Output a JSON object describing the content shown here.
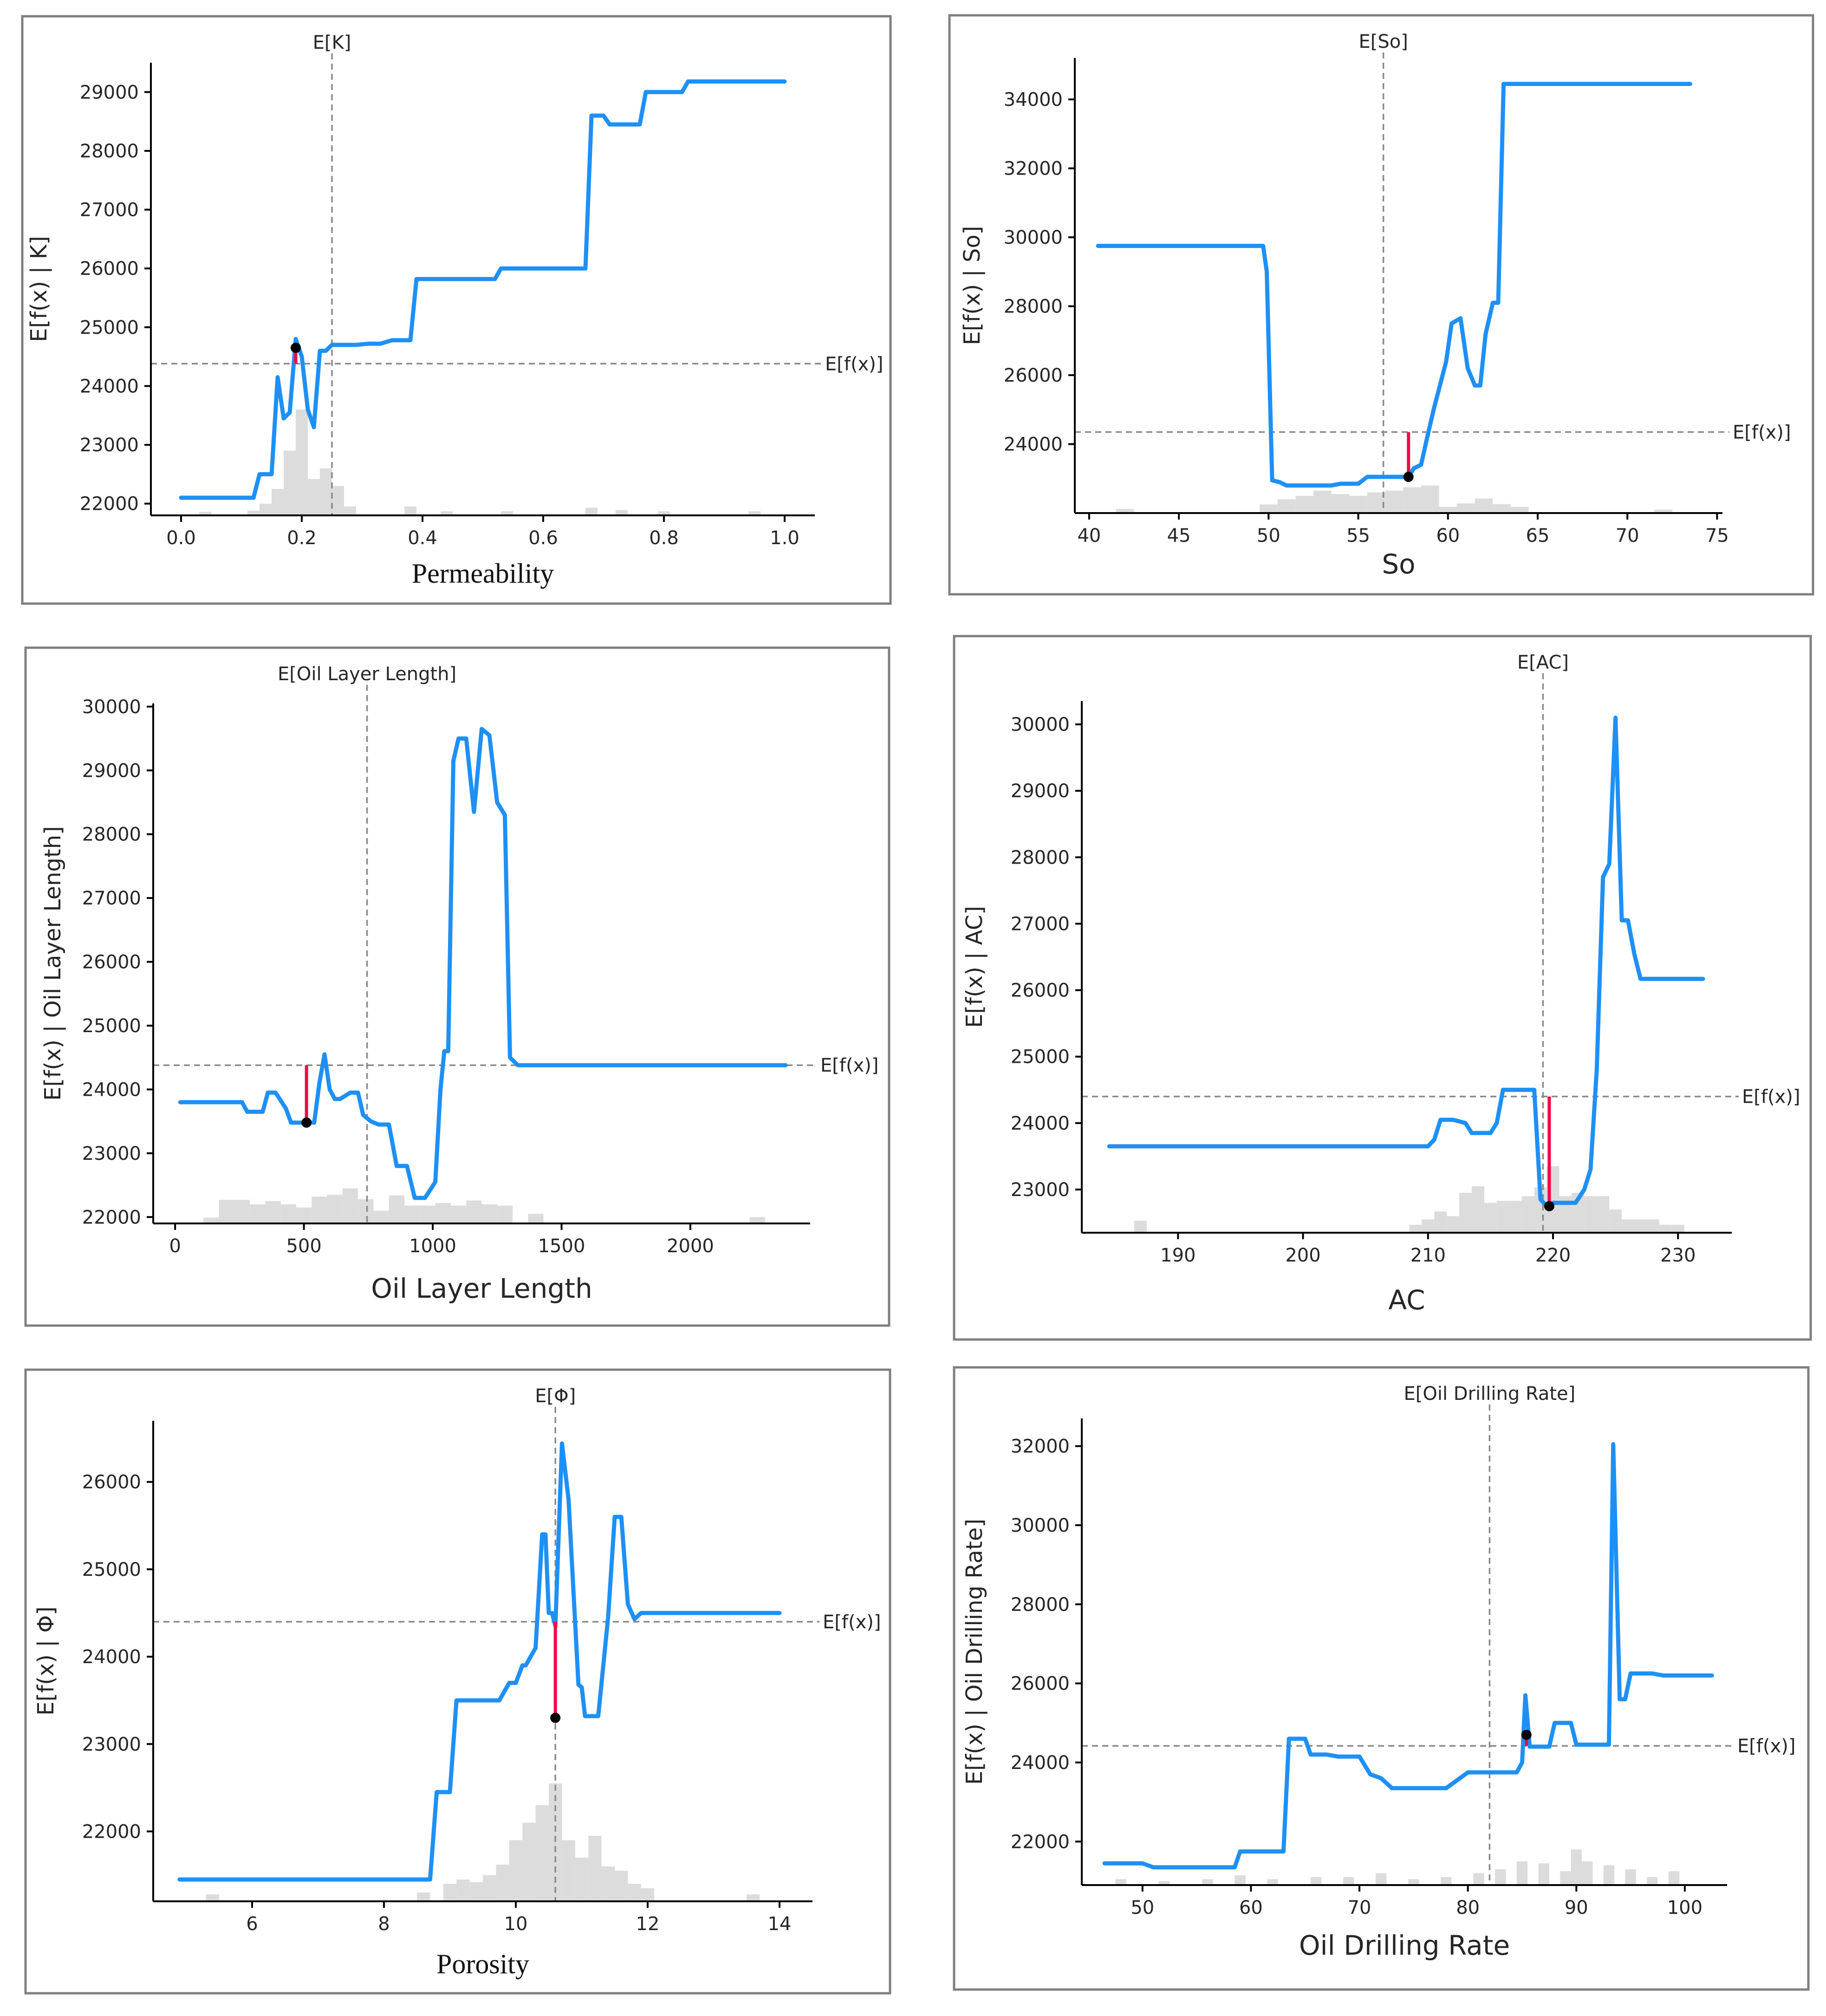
{
  "colors": {
    "pd_line": "#1e90f5",
    "histogram": "#dcdcdc",
    "reference_line": "#8a8a8a",
    "sample_stem": "#ee0a4a",
    "sample_point": "#000000",
    "frame": "#7f7f7f"
  },
  "chart_data": [
    {
      "type": "line",
      "id": "permeability",
      "xlabel": "Permeability",
      "ylabel": "E[f(x) | K]",
      "vline_label": "E[K]",
      "hline_label": "E[f(x)]",
      "xlim": [
        -0.05,
        1.05
      ],
      "ylim": [
        21800,
        29500
      ],
      "xticks": [
        0.0,
        0.2,
        0.4,
        0.6,
        0.8,
        1.0
      ],
      "xtick_labels": [
        "0.0",
        "0.2",
        "0.4",
        "0.6",
        "0.8",
        "1.0"
      ],
      "yticks": [
        22000,
        23000,
        24000,
        25000,
        26000,
        27000,
        28000,
        29000
      ],
      "ytick_labels": [
        "22000",
        "23000",
        "24000",
        "25000",
        "26000",
        "27000",
        "28000",
        "29000"
      ],
      "expected_x": 0.25,
      "expected_y": 24380,
      "sample_point": {
        "x": 0.19,
        "y": 24650
      },
      "series": [
        {
          "name": "partial dependence",
          "x": [
            0.0,
            0.12,
            0.13,
            0.15,
            0.16,
            0.17,
            0.18,
            0.19,
            0.2,
            0.21,
            0.22,
            0.23,
            0.24,
            0.25,
            0.27,
            0.29,
            0.31,
            0.33,
            0.35,
            0.38,
            0.39,
            0.52,
            0.53,
            0.61,
            0.67,
            0.68,
            0.7,
            0.71,
            0.76,
            0.77,
            0.83,
            0.84,
            1.0
          ],
          "y": [
            22100,
            22100,
            22500,
            22500,
            24150,
            23450,
            23550,
            24800,
            24500,
            23600,
            23300,
            24600,
            24600,
            24700,
            24700,
            24700,
            24720,
            24720,
            24780,
            24780,
            25820,
            25820,
            26000,
            26000,
            26000,
            28600,
            28600,
            28450,
            28450,
            29000,
            29000,
            29180,
            29180
          ]
        }
      ],
      "histogram": {
        "centers": [
          0.04,
          0.12,
          0.14,
          0.16,
          0.18,
          0.2,
          0.22,
          0.24,
          0.26,
          0.28,
          0.38,
          0.44,
          0.54,
          0.68,
          0.73,
          0.8,
          0.95
        ],
        "heights": [
          60,
          80,
          200,
          450,
          1100,
          1800,
          620,
          800,
          500,
          150,
          150,
          70,
          70,
          130,
          90,
          70,
          70
        ]
      }
    },
    {
      "type": "line",
      "id": "so",
      "xlabel": "So",
      "ylabel": "E[f(x) | So]",
      "vline_label": "E[So]",
      "hline_label": "E[f(x)]",
      "xlim": [
        39.2,
        75.3
      ],
      "ylim": [
        22000,
        35200
      ],
      "xticks": [
        40,
        45,
        50,
        55,
        60,
        65,
        70,
        75
      ],
      "xtick_labels": [
        "40",
        "45",
        "50",
        "55",
        "60",
        "65",
        "70",
        "75"
      ],
      "yticks": [
        24000,
        26000,
        28000,
        30000,
        32000,
        34000
      ],
      "ytick_labels": [
        "24000",
        "26000",
        "28000",
        "30000",
        "32000",
        "34000"
      ],
      "expected_x": 56.4,
      "expected_y": 24350,
      "sample_point": {
        "x": 57.8,
        "y": 23050
      },
      "series": [
        {
          "name": "partial dependence",
          "x": [
            40.5,
            49.7,
            49.9,
            50.2,
            50.6,
            51.0,
            52.0,
            52.5,
            53.5,
            54.0,
            55.0,
            55.5,
            57.0,
            57.8,
            58.1,
            58.5,
            58.8,
            59.2,
            59.6,
            59.9,
            60.2,
            60.7,
            61.1,
            61.5,
            61.8,
            62.1,
            62.5,
            62.8,
            63.1,
            73.5
          ],
          "y": [
            29750,
            29750,
            29000,
            22950,
            22900,
            22800,
            22800,
            22800,
            22800,
            22850,
            22850,
            23050,
            23050,
            23050,
            23300,
            23400,
            24100,
            25000,
            25800,
            26400,
            27500,
            27650,
            26200,
            25700,
            25700,
            27200,
            28100,
            28100,
            34450,
            34450
          ]
        }
      ],
      "histogram": {
        "centers": [
          42,
          50,
          51,
          52,
          53,
          54,
          55,
          56,
          57,
          58,
          59,
          60,
          61,
          62,
          63,
          64,
          72
        ],
        "heights": [
          120,
          250,
          400,
          500,
          650,
          550,
          500,
          600,
          650,
          750,
          800,
          180,
          280,
          420,
          260,
          180,
          100
        ]
      }
    },
    {
      "type": "line",
      "id": "oil-layer-length",
      "xlabel": "Oil Layer Length",
      "ylabel": "E[f(x) | Oil Layer Length]",
      "vline_label": "E[Oil Layer Length]",
      "hline_label": "E[f(x)]",
      "xlim": [
        -85,
        2465
      ],
      "ylim": [
        21900,
        30050
      ],
      "xticks": [
        0,
        500,
        1000,
        1500,
        2000
      ],
      "xtick_labels": [
        "0",
        "500",
        "1000",
        "1500",
        "2000"
      ],
      "yticks": [
        22000,
        23000,
        24000,
        25000,
        26000,
        27000,
        28000,
        29000,
        30000
      ],
      "ytick_labels": [
        "22000",
        "23000",
        "24000",
        "25000",
        "26000",
        "27000",
        "28000",
        "29000",
        "30000"
      ],
      "expected_x": 745,
      "expected_y": 24380,
      "sample_point": {
        "x": 510,
        "y": 23480
      },
      "series": [
        {
          "name": "partial dependence",
          "x": [
            20,
            260,
            280,
            340,
            360,
            390,
            430,
            450,
            510,
            540,
            560,
            580,
            600,
            620,
            640,
            680,
            710,
            730,
            760,
            790,
            830,
            860,
            880,
            900,
            930,
            970,
            1010,
            1030,
            1045,
            1060,
            1080,
            1100,
            1130,
            1160,
            1190,
            1220,
            1250,
            1280,
            1300,
            1330,
            2370
          ],
          "y": [
            23800,
            23800,
            23650,
            23650,
            23950,
            23950,
            23700,
            23480,
            23480,
            23480,
            24100,
            24550,
            24000,
            23850,
            23850,
            23950,
            23950,
            23600,
            23500,
            23450,
            23450,
            22800,
            22800,
            22800,
            22300,
            22300,
            22550,
            24000,
            24600,
            24600,
            29150,
            29500,
            29500,
            28350,
            29650,
            29550,
            28500,
            28300,
            24500,
            24380,
            24380
          ]
        }
      ],
      "histogram": {
        "centers": [
          140,
          200,
          260,
          320,
          380,
          440,
          500,
          560,
          620,
          680,
          740,
          800,
          860,
          920,
          980,
          1040,
          1100,
          1160,
          1220,
          1280,
          1400,
          2260
        ],
        "heights": [
          90,
          370,
          370,
          300,
          350,
          300,
          250,
          420,
          450,
          550,
          380,
          200,
          440,
          280,
          280,
          320,
          280,
          360,
          300,
          280,
          150,
          100
        ]
      }
    },
    {
      "type": "line",
      "id": "ac",
      "xlabel": "AC",
      "ylabel": "E[f(x) | AC]",
      "vline_label": "E[AC]",
      "hline_label": "E[f(x)]",
      "xlim": [
        182.3,
        234.3
      ],
      "ylim": [
        22350,
        30350
      ],
      "xticks": [
        190,
        200,
        210,
        220,
        230
      ],
      "xtick_labels": [
        "190",
        "200",
        "210",
        "220",
        "230"
      ],
      "yticks": [
        23000,
        24000,
        25000,
        26000,
        27000,
        28000,
        29000,
        30000
      ],
      "ytick_labels": [
        "23000",
        "24000",
        "25000",
        "26000",
        "27000",
        "28000",
        "29000",
        "30000"
      ],
      "expected_x": 219.2,
      "expected_y": 24400,
      "sample_point": {
        "x": 219.7,
        "y": 22750
      },
      "series": [
        {
          "name": "partial dependence",
          "x": [
            184.5,
            210.0,
            210.5,
            211.0,
            212.0,
            213.0,
            213.5,
            215.0,
            215.5,
            216.0,
            218.5,
            219.0,
            219.5,
            220.0,
            221.0,
            221.8,
            222.5,
            223.0,
            223.5,
            224.0,
            224.5,
            225.0,
            225.5,
            226.0,
            226.5,
            227.0,
            232.0
          ],
          "y": [
            23650,
            23650,
            23750,
            24050,
            24050,
            24000,
            23850,
            23850,
            24000,
            24500,
            24500,
            22850,
            22750,
            22800,
            22800,
            22800,
            23000,
            23300,
            24800,
            27700,
            27900,
            30100,
            27050,
            27050,
            26550,
            26170,
            26170
          ]
        }
      ],
      "histogram": {
        "centers": [
          187,
          209,
          210,
          211,
          212,
          213,
          214,
          215,
          216,
          217,
          218,
          219,
          220,
          221,
          222,
          223,
          224,
          225,
          226,
          227,
          228,
          229,
          230
        ],
        "heights": [
          180,
          120,
          200,
          320,
          250,
          600,
          700,
          450,
          480,
          480,
          550,
          680,
          1000,
          550,
          600,
          550,
          550,
          350,
          200,
          200,
          200,
          120,
          120
        ]
      }
    },
    {
      "type": "line",
      "id": "porosity",
      "xlabel": "Porosity",
      "ylabel": "E[f(x) | Φ]",
      "vline_label": "E[Φ]",
      "hline_label": "E[f(x)]",
      "xlim": [
        4.5,
        14.5
      ],
      "ylim": [
        21200,
        26700
      ],
      "xticks": [
        6,
        8,
        10,
        12,
        14
      ],
      "xtick_labels": [
        "6",
        "8",
        "10",
        "12",
        "14"
      ],
      "yticks": [
        22000,
        23000,
        24000,
        25000,
        26000
      ],
      "ytick_labels": [
        "22000",
        "23000",
        "24000",
        "25000",
        "26000"
      ],
      "expected_x": 10.6,
      "expected_y": 24400,
      "sample_point": {
        "x": 10.6,
        "y": 23300
      },
      "series": [
        {
          "name": "partial dependence",
          "x": [
            4.9,
            8.7,
            8.8,
            9.0,
            9.1,
            9.4,
            9.6,
            9.75,
            9.9,
            10.0,
            10.1,
            10.15,
            10.3,
            10.4,
            10.45,
            10.5,
            10.55,
            10.6,
            10.7,
            10.8,
            10.95,
            11.0,
            11.05,
            11.2,
            11.25,
            11.4,
            11.5,
            11.6,
            11.7,
            11.8,
            11.9,
            12.0,
            14.0
          ],
          "y": [
            21450,
            21450,
            22450,
            22450,
            23500,
            23500,
            23500,
            23500,
            23700,
            23700,
            23900,
            23900,
            24100,
            25400,
            25400,
            24500,
            24500,
            24350,
            26440,
            25800,
            23680,
            23650,
            23320,
            23320,
            23320,
            24450,
            25600,
            25600,
            24600,
            24430,
            24500,
            24500,
            24500
          ]
        }
      ],
      "histogram": {
        "centers": [
          5.4,
          8.6,
          9.0,
          9.2,
          9.4,
          9.6,
          9.8,
          10.0,
          10.2,
          10.4,
          10.6,
          10.8,
          11.0,
          11.2,
          11.4,
          11.6,
          11.8,
          12.0,
          13.6
        ],
        "heights": [
          80,
          100,
          200,
          250,
          220,
          300,
          420,
          700,
          900,
          1100,
          1350,
          700,
          500,
          750,
          400,
          350,
          200,
          150,
          80
        ]
      }
    },
    {
      "type": "line",
      "id": "oil-drilling-rate",
      "xlabel": "Oil Drilling Rate",
      "ylabel": "E[f(x) | Oil Drilling Rate]",
      "vline_label": "E[Oil Drilling Rate]",
      "hline_label": "E[f(x)]",
      "xlim": [
        44.4,
        103.9
      ],
      "ylim": [
        20900,
        32700
      ],
      "xticks": [
        50,
        60,
        70,
        80,
        90,
        100
      ],
      "xtick_labels": [
        "50",
        "60",
        "70",
        "80",
        "90",
        "100"
      ],
      "yticks": [
        22000,
        24000,
        26000,
        28000,
        30000,
        32000
      ],
      "ytick_labels": [
        "22000",
        "24000",
        "26000",
        "28000",
        "30000",
        "32000"
      ],
      "expected_x": 82,
      "expected_y": 24420,
      "sample_point": {
        "x": 85.4,
        "y": 24700
      },
      "series": [
        {
          "name": "partial dependence",
          "x": [
            46.5,
            50.0,
            51.0,
            58.5,
            59.0,
            63.0,
            63.5,
            65.0,
            65.5,
            67.0,
            68.0,
            70.0,
            71.0,
            72.0,
            73.0,
            74.0,
            76.0,
            78.0,
            79.0,
            80.0,
            84.5,
            85.0,
            85.3,
            85.7,
            86.5,
            87.5,
            88.0,
            89.5,
            90.0,
            91.0,
            93.0,
            93.4,
            94.0,
            94.5,
            95.0,
            97.0,
            98.0,
            102.5
          ],
          "y": [
            21450,
            21450,
            21350,
            21350,
            21750,
            21750,
            24600,
            24600,
            24200,
            24200,
            24150,
            24150,
            23700,
            23600,
            23350,
            23350,
            23350,
            23350,
            23550,
            23750,
            23750,
            24000,
            25700,
            24400,
            24400,
            24400,
            25000,
            25000,
            24450,
            24450,
            24450,
            32050,
            25600,
            25600,
            26250,
            26250,
            26200,
            26200
          ]
        }
      ],
      "histogram": {
        "centers": [
          48,
          52,
          56,
          59,
          62,
          66,
          69,
          72,
          75,
          78,
          81,
          83,
          85,
          87,
          89,
          90,
          91,
          93,
          95,
          97,
          99
        ],
        "heights": [
          150,
          100,
          150,
          250,
          150,
          200,
          200,
          300,
          150,
          200,
          300,
          400,
          600,
          550,
          350,
          900,
          600,
          500,
          400,
          200,
          350
        ]
      }
    }
  ]
}
